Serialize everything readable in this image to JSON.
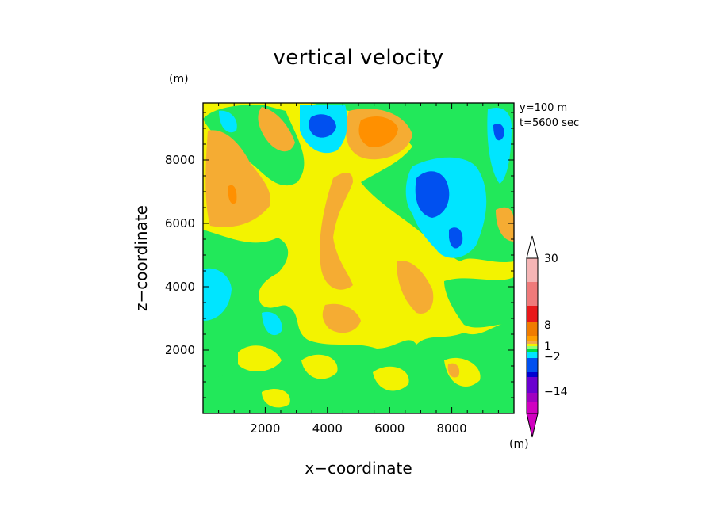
{
  "chart_data": {
    "type": "heatmap",
    "title": "vertical velocity",
    "xlabel": "x−coordinate",
    "ylabel": "z−coordinate",
    "y_unit": "(m)",
    "annotations": [
      "y=100 m",
      "t=5600 sec"
    ],
    "xlim": [
      0,
      10000
    ],
    "ylim": [
      0,
      9800
    ],
    "x_ticks": [
      2000,
      4000,
      6000,
      8000
    ],
    "y_ticks": [
      2000,
      4000,
      6000,
      8000
    ],
    "x_tick_labels": [
      "2000",
      "4000",
      "6000",
      "8000"
    ],
    "y_tick_labels": [
      "2000",
      "4000",
      "6000",
      "8000"
    ],
    "colorbar": {
      "unit": "(m)",
      "labels": [
        "30",
        "8",
        "1",
        "−2",
        "−14"
      ],
      "colors": [
        "#f5b5b5",
        "#ef7a7a",
        "#e8181a",
        "#f07c00",
        "#ff9f00",
        "#f3a94a",
        "#f3f300",
        "#90ff70",
        "#00e040",
        "#00e5ff",
        "#0050f0",
        "#0000d0",
        "#6a00d0",
        "#a000c0",
        "#d000c0"
      ]
    },
    "field_colors": {
      "bg": "#f3f300",
      "green": "#22e85a",
      "orange": "#f5ac33",
      "dark_orange": "#ff9000",
      "cyan": "#00e5ff",
      "blue": "#0050f0"
    }
  }
}
